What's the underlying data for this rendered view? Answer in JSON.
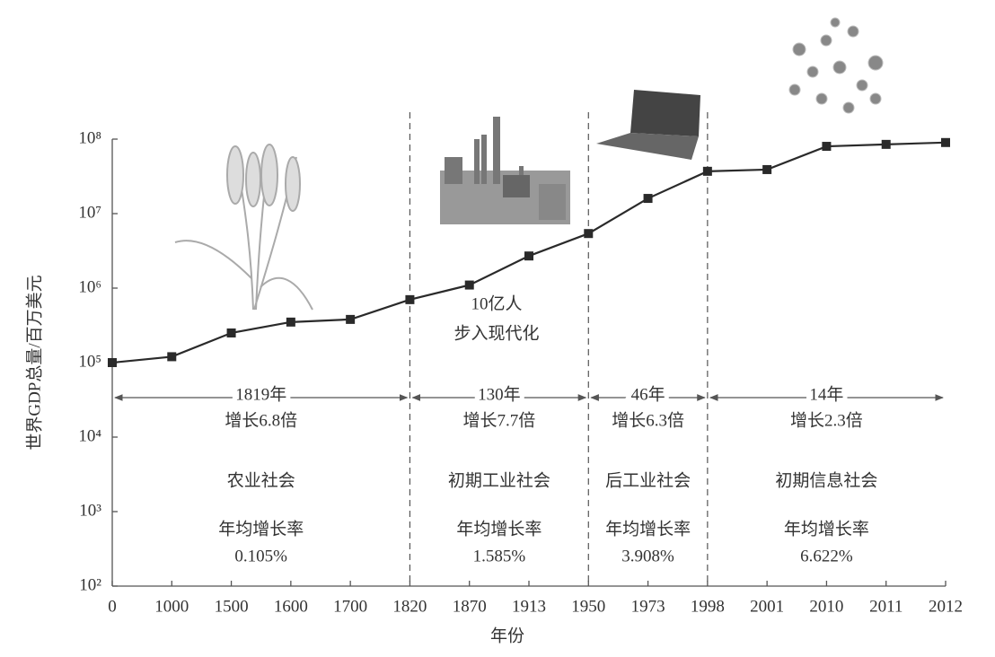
{
  "chart_data": {
    "type": "line",
    "x_label": "年份",
    "y_label": "世界GDP总量/百万美元",
    "categories": [
      "0",
      "1000",
      "1500",
      "1600",
      "1700",
      "1820",
      "1870",
      "1913",
      "1950",
      "1973",
      "1998",
      "2001",
      "2010",
      "2011",
      "2012"
    ],
    "values": [
      100000,
      120000,
      250000,
      350000,
      380000,
      700000,
      1100000,
      2700000,
      5400000,
      16000000,
      37000000,
      39000000,
      80000000,
      85000000,
      90000000
    ],
    "color": "#2a2a2a",
    "log_scale": true,
    "ylim": [
      100,
      100000000
    ],
    "yticks": [
      {
        "value": 100,
        "label": "10²"
      },
      {
        "value": 1000,
        "label": "10³"
      },
      {
        "value": 10000,
        "label": "10⁴"
      },
      {
        "value": 100000,
        "label": "10⁵"
      },
      {
        "value": 1000000,
        "label": "10⁶"
      },
      {
        "value": 10000000,
        "label": "10⁷"
      },
      {
        "value": 100000000,
        "label": "10⁸"
      }
    ],
    "annotations": [
      "10亿人",
      "步入现代化"
    ],
    "periods": [
      {
        "span": "1819年",
        "growth": "增长6.8倍",
        "society": "农业社会",
        "rate_label": "年均增长率",
        "rate": "0.105%"
      },
      {
        "span": "130年",
        "growth": "增长7.7倍",
        "society": "初期工业社会",
        "rate_label": "年均增长率",
        "rate": "1.585%"
      },
      {
        "span": "46年",
        "growth": "增长6.3倍",
        "society": "后工业社会",
        "rate_label": "年均增长率",
        "rate": "3.908%"
      },
      {
        "span": "14年",
        "growth": "增长2.3倍",
        "society": "初期信息社会",
        "rate_label": "年均增长率",
        "rate": "6.622%"
      }
    ]
  }
}
